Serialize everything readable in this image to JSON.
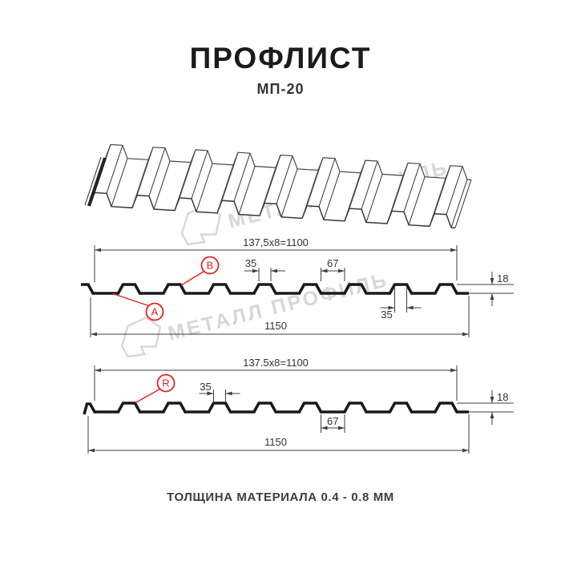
{
  "header": {
    "title": "ПРОФЛИСТ",
    "subtitle": "МП-20"
  },
  "footer": {
    "text": "ТОЛЩИНА МАТЕРИАЛА 0.4 - 0.8 ММ"
  },
  "watermark": {
    "brand": "МЕТАЛЛ ПРОФИЛЬ"
  },
  "colors": {
    "profile_line": "#191919",
    "dim_line": "#3f3f3f",
    "text": "#333333",
    "red": "#e62320",
    "watermark": "#d7d7d7"
  },
  "spec": {
    "pitch_mm": 137.5,
    "pitch_count": 8,
    "coverage_mm": 1100,
    "overall_mm": 1150,
    "height_mm": 18,
    "crest_width_mm": 35,
    "valley_width_mm": 67,
    "thickness_range_mm": "0.4 - 0.8"
  },
  "sections": [
    {
      "id": "profile-side-ab",
      "callouts": [
        {
          "label": "A"
        },
        {
          "label": "B"
        }
      ],
      "dims": {
        "coverage": "137,5x8=1100",
        "overall": "1150",
        "crest_width": "35",
        "valley_width": "67",
        "crest_width_2": "35",
        "height": "18"
      }
    },
    {
      "id": "profile-side-r",
      "callouts": [
        {
          "label": "R"
        }
      ],
      "dims": {
        "coverage": "137.5x8=1100",
        "overall": "1150",
        "crest_width": "35",
        "valley_width": "67",
        "height": "18"
      }
    }
  ]
}
